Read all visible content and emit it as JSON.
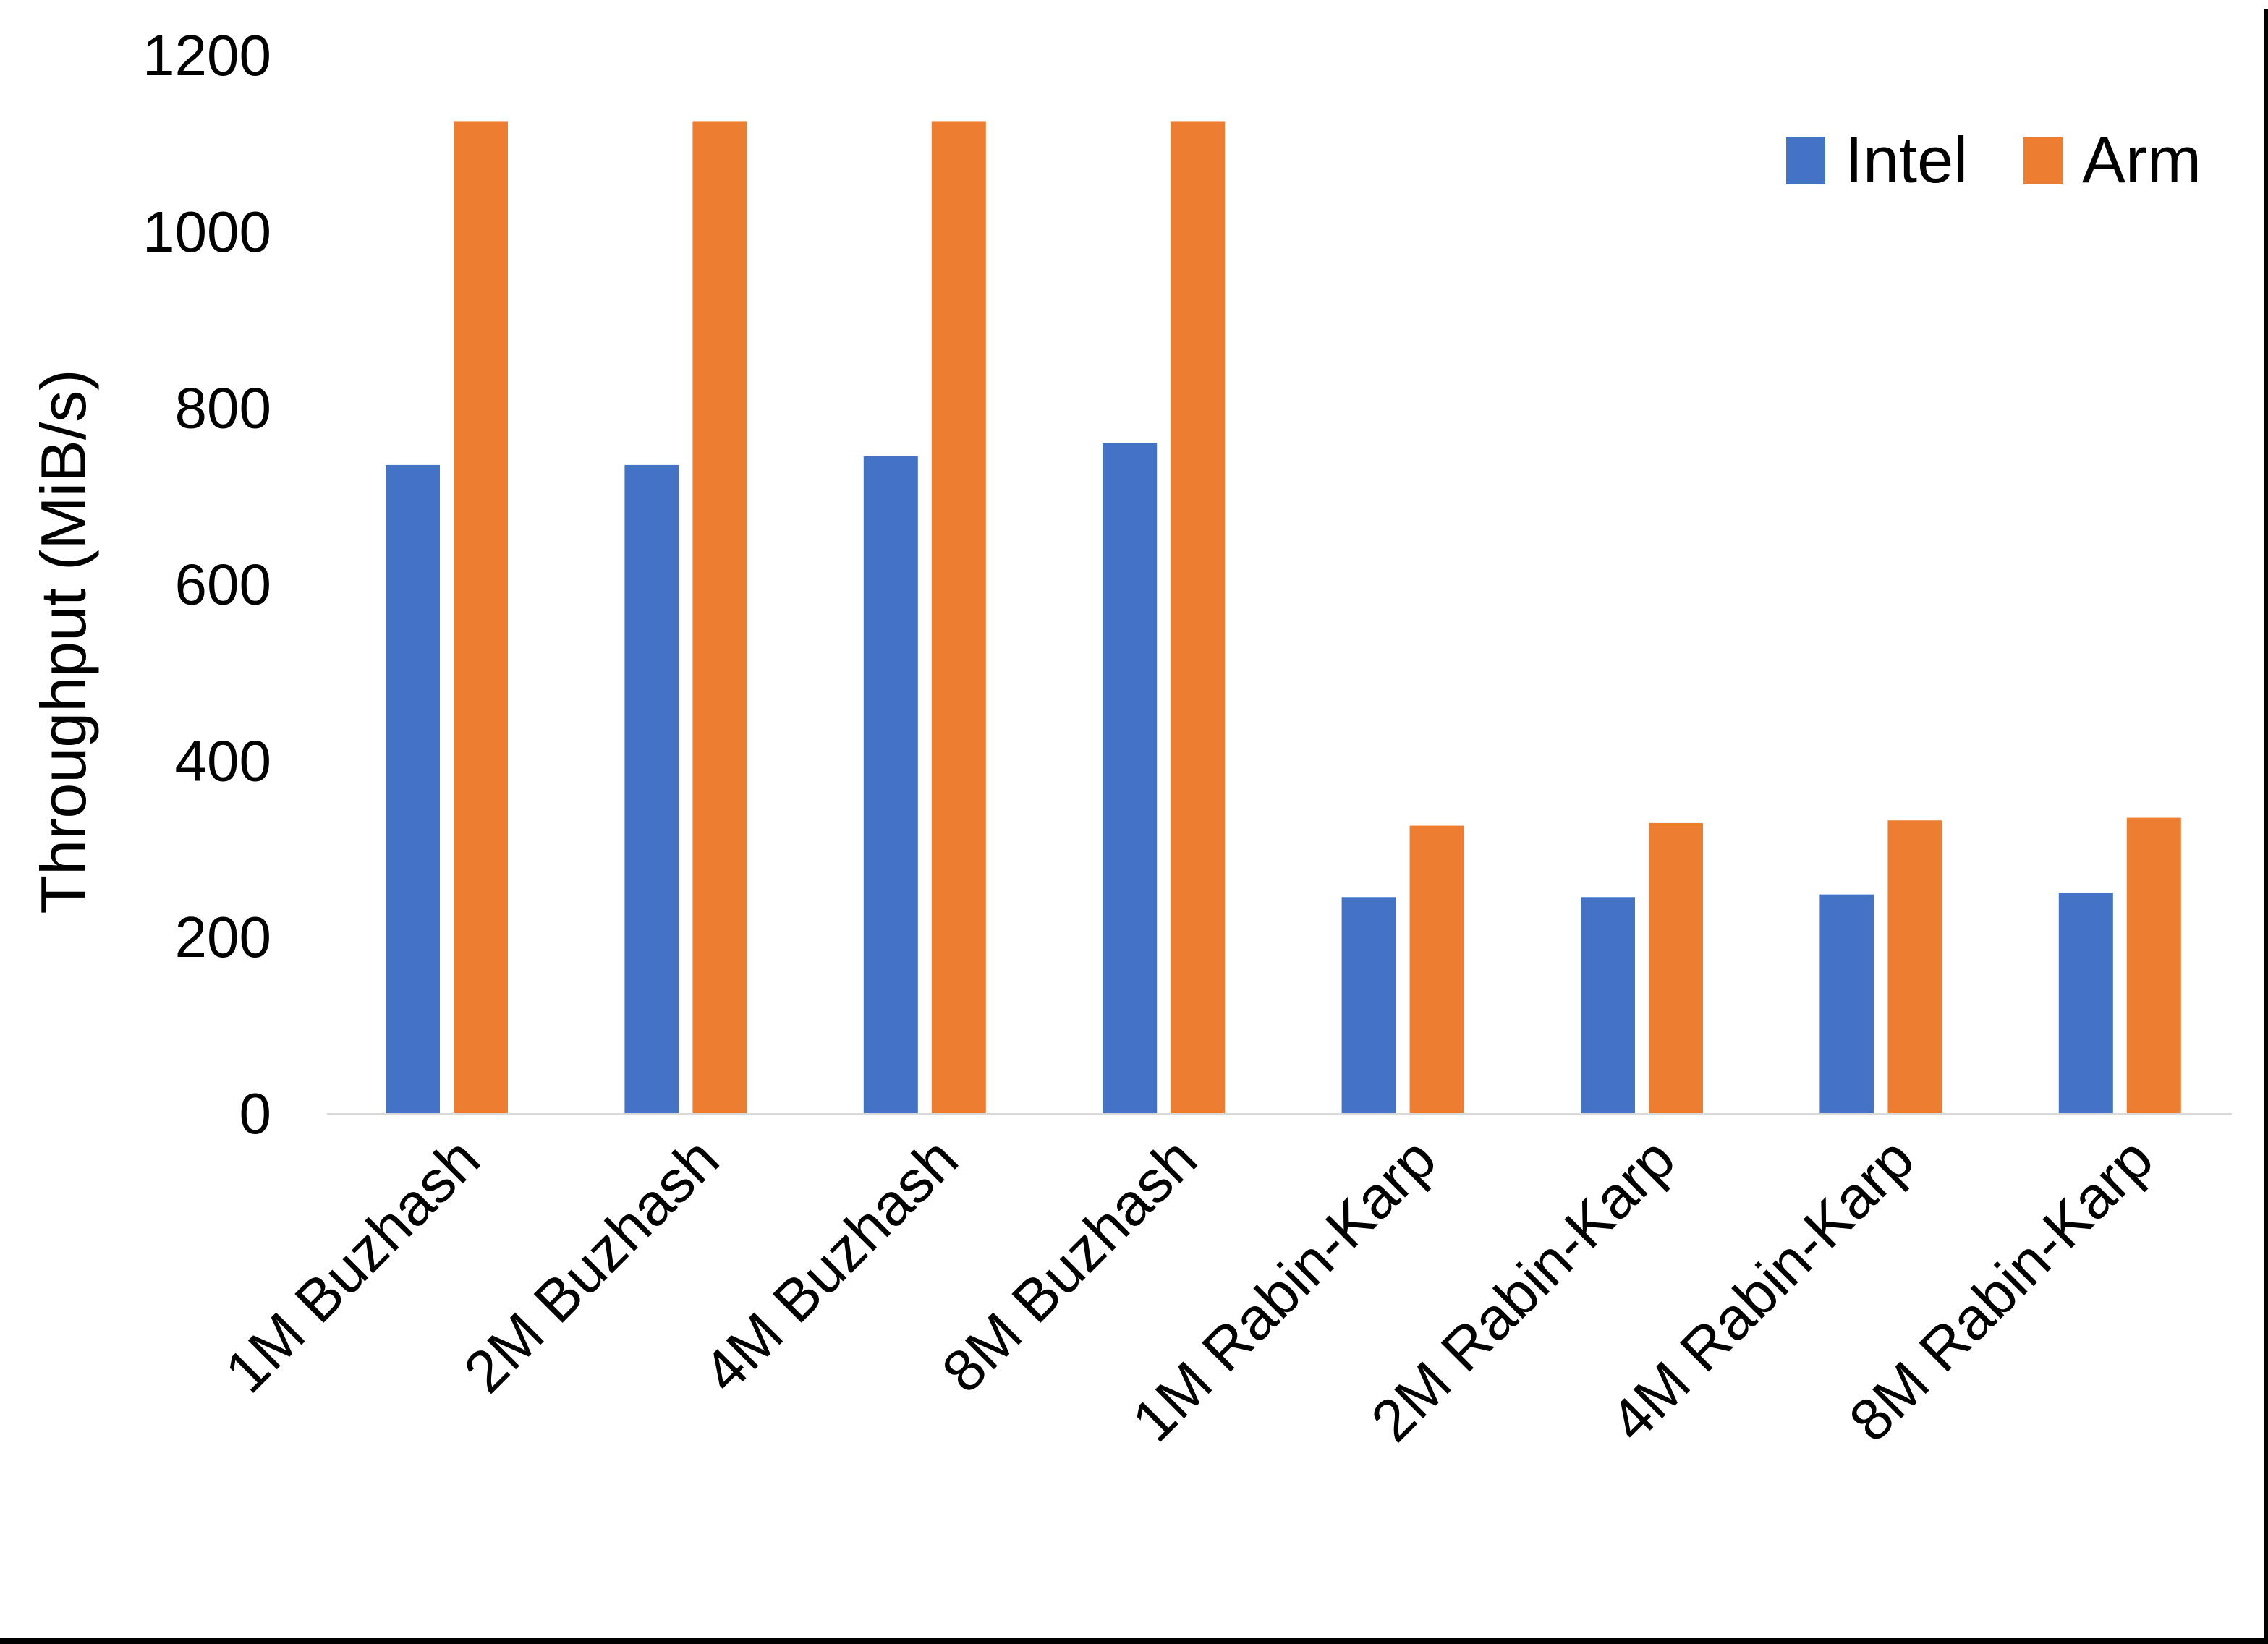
{
  "chart_data": {
    "type": "bar",
    "title": "",
    "xlabel": "",
    "ylabel": "Throughput (MiB/s)",
    "ylim": [
      0,
      1200
    ],
    "yticks": [
      0,
      200,
      400,
      600,
      800,
      1000,
      1200
    ],
    "grid": false,
    "legend_position": "top-right",
    "categories": [
      "1M Buzhash",
      "2M Buzhash",
      "4M Buzhash",
      "8M Buzhash",
      "1M Rabin-Karp",
      "2M Rabin-Karp",
      "4M Rabin-Karp",
      "8M Rabin-Karp"
    ],
    "series": [
      {
        "name": "Intel",
        "color": "#4472C4",
        "values": [
          735,
          735,
          745,
          760,
          245,
          245,
          248,
          250
        ]
      },
      {
        "name": "Arm",
        "color": "#ED7D31",
        "values": [
          1125,
          1125,
          1125,
          1125,
          326,
          329,
          332,
          335
        ]
      }
    ],
    "axis_line_color": "#D9D9D9",
    "text_color": "#000000"
  }
}
